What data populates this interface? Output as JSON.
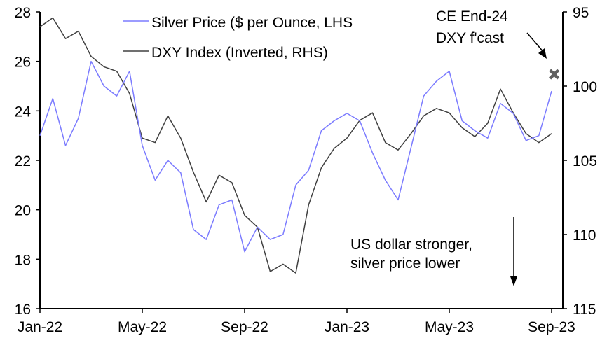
{
  "chart_data": {
    "type": "line",
    "title": "",
    "xlabel": "",
    "ylabel_left": "Silver Price ($ per Ounce)",
    "ylabel_right": "DXY Index (inverted)",
    "x_unit": "months since Jan-22",
    "x_ticks": [
      0,
      4,
      8,
      12,
      16,
      20
    ],
    "x_tick_labels": [
      "Jan-22",
      "May-22",
      "Sep-22",
      "Jan-23",
      "May-23",
      "Sep-23"
    ],
    "xlim": [
      0,
      20
    ],
    "ylim_left": [
      16,
      28
    ],
    "y_ticks_left": [
      16,
      18,
      20,
      22,
      24,
      26,
      28
    ],
    "ylim_right": [
      115,
      95
    ],
    "y_ticks_right": [
      95,
      100,
      105,
      110,
      115
    ],
    "grid": false,
    "legend_position": "top-left",
    "x": [
      0,
      0.5,
      1,
      1.5,
      2,
      2.5,
      3,
      3.5,
      4,
      4.5,
      5,
      5.5,
      6,
      6.5,
      7,
      7.5,
      8,
      8.5,
      9,
      9.5,
      10,
      10.5,
      11,
      11.5,
      12,
      12.5,
      13,
      13.5,
      14,
      14.5,
      15,
      15.5,
      16,
      16.5,
      17,
      17.5,
      18,
      18.5,
      19,
      19.5,
      20
    ],
    "series": [
      {
        "name": "Silver Price ($ per Ounce, LHS",
        "axis": "left",
        "color": "#7b7bff",
        "values": [
          23.0,
          24.5,
          22.6,
          23.7,
          26.0,
          25.0,
          24.6,
          25.6,
          22.6,
          21.2,
          22.0,
          21.5,
          19.2,
          18.8,
          20.2,
          20.4,
          18.3,
          19.3,
          18.8,
          19.0,
          21.0,
          21.6,
          23.2,
          23.6,
          23.9,
          23.6,
          22.3,
          21.2,
          20.4,
          22.5,
          24.6,
          25.2,
          25.6,
          23.6,
          23.2,
          22.9,
          24.3,
          23.9,
          22.8,
          23.0,
          24.8
        ]
      },
      {
        "name": "DXY Index (Inverted, RHS)",
        "axis": "right",
        "color": "#404040",
        "values": [
          96.0,
          95.4,
          96.8,
          96.3,
          98.0,
          98.7,
          99.0,
          100.5,
          103.5,
          103.8,
          102.0,
          103.5,
          105.8,
          107.8,
          106.0,
          106.5,
          108.7,
          109.5,
          112.5,
          112.0,
          112.6,
          108.0,
          105.5,
          104.2,
          103.5,
          102.3,
          101.8,
          103.8,
          104.3,
          103.2,
          102.0,
          101.5,
          101.8,
          102.8,
          103.4,
          102.5,
          100.2,
          101.8,
          103.2,
          103.8,
          103.2
        ]
      }
    ],
    "forecast_marker": {
      "x": 20.1,
      "value": 99.2,
      "axis": "right",
      "color": "#606060"
    },
    "annotations": {
      "forecast_line1": "CE End-24",
      "forecast_line2": "DXY f'cast",
      "note_line1": "US dollar stronger,",
      "note_line2": "silver price lower"
    }
  }
}
